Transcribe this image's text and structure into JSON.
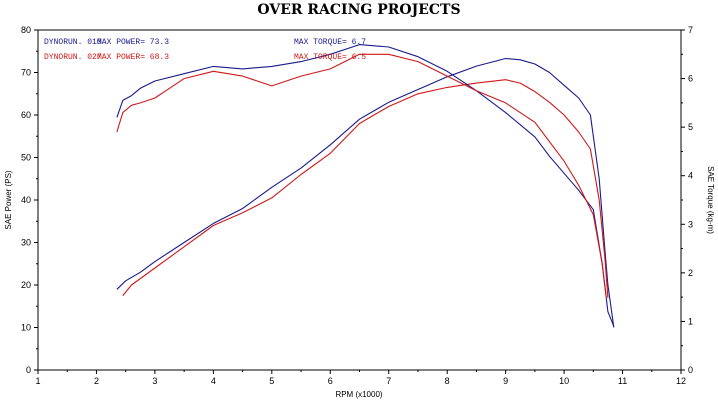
{
  "chart_data": {
    "type": "line",
    "title": "OVER RACING PROJECTS",
    "xlabel": "RPM (x1000)",
    "ylabel_left": "SAE Power (PS)",
    "ylabel_right": "SAE Torque (kg-m)",
    "xlim": [
      1,
      12
    ],
    "ylim_left": [
      0,
      80
    ],
    "ylim_right": [
      0,
      7
    ],
    "xticks": [
      "1",
      "2",
      "3",
      "4",
      "5",
      "6",
      "7",
      "8",
      "9",
      "10",
      "11",
      "12"
    ],
    "yticks_left": [
      "0",
      "10",
      "20",
      "30",
      "40",
      "50",
      "60",
      "70",
      "80"
    ],
    "yticks_right": [
      "0",
      "1",
      "2",
      "3",
      "4",
      "5",
      "6",
      "7"
    ],
    "grid": false,
    "legend": [
      {
        "run": "DYNORUN. 010",
        "power": "MAX POWER= 73.3",
        "torque": "MAX TORQUE= 6.7",
        "color": "#1a1a8c"
      },
      {
        "run": "DYNORUN. 027",
        "power": "MAX POWER= 68.3",
        "torque": "MAX TORQUE= 6.5",
        "color": "#d01818"
      }
    ],
    "series": [
      {
        "run": "DYNORUN. 010",
        "quantity": "power",
        "axis": "left",
        "color": "#1a1a8c",
        "x": [
          2.35,
          2.5,
          2.75,
          3,
          3.5,
          4,
          4.5,
          5,
          5.5,
          6,
          6.5,
          7,
          7.5,
          8,
          8.5,
          9,
          9.25,
          9.5,
          9.75,
          10,
          10.25,
          10.45,
          10.6,
          10.7,
          10.75,
          10.8,
          10.85
        ],
        "y": [
          19,
          21,
          23,
          25.5,
          30,
          34.5,
          38,
          43,
          47.5,
          53,
          59,
          63,
          66,
          69,
          71.5,
          73.3,
          73,
          72,
          70,
          67,
          64,
          60,
          45,
          28,
          20,
          15,
          10
        ]
      },
      {
        "run": "DYNORUN. 027",
        "quantity": "power",
        "axis": "left",
        "color": "#d01818",
        "x": [
          2.45,
          2.6,
          2.8,
          3,
          3.5,
          4,
          4.5,
          5,
          5.5,
          6,
          6.5,
          7,
          7.5,
          8,
          8.5,
          9,
          9.25,
          9.5,
          9.75,
          10,
          10.25,
          10.45,
          10.6,
          10.7,
          10.75
        ],
        "y": [
          17.5,
          20,
          22,
          24,
          29,
          34,
          37,
          40.5,
          46,
          51,
          58,
          62,
          65,
          66.5,
          67.5,
          68.3,
          67.5,
          65.5,
          63,
          60,
          56,
          52,
          40,
          26,
          17
        ]
      },
      {
        "run": "DYNORUN. 010",
        "quantity": "torque",
        "axis": "right",
        "color": "#1a1a8c",
        "x": [
          2.35,
          2.45,
          2.6,
          2.75,
          3,
          3.5,
          4,
          4.5,
          5,
          5.5,
          6,
          6.3,
          6.5,
          7,
          7.5,
          8,
          8.5,
          9,
          9.5,
          9.75,
          10,
          10.25,
          10.5,
          10.65,
          10.75,
          10.85
        ],
        "y": [
          5.2,
          5.55,
          5.65,
          5.8,
          5.95,
          6.1,
          6.25,
          6.2,
          6.25,
          6.35,
          6.5,
          6.62,
          6.7,
          6.65,
          6.45,
          6.15,
          5.75,
          5.3,
          4.8,
          4.4,
          4.05,
          3.7,
          3.3,
          2.2,
          1.2,
          0.9
        ]
      },
      {
        "run": "DYNORUN. 027",
        "quantity": "torque",
        "axis": "right",
        "color": "#d01818",
        "x": [
          2.35,
          2.45,
          2.6,
          2.75,
          3,
          3.25,
          3.5,
          4,
          4.5,
          5,
          5.5,
          6,
          6.5,
          7,
          7.5,
          8,
          8.5,
          9,
          9.5,
          9.75,
          10,
          10.25,
          10.5,
          10.65,
          10.72
        ],
        "y": [
          4.9,
          5.3,
          5.45,
          5.5,
          5.6,
          5.8,
          6.0,
          6.15,
          6.05,
          5.85,
          6.05,
          6.2,
          6.5,
          6.5,
          6.35,
          6.05,
          5.75,
          5.5,
          5.1,
          4.7,
          4.3,
          3.8,
          3.2,
          2.2,
          1.5
        ]
      }
    ]
  }
}
